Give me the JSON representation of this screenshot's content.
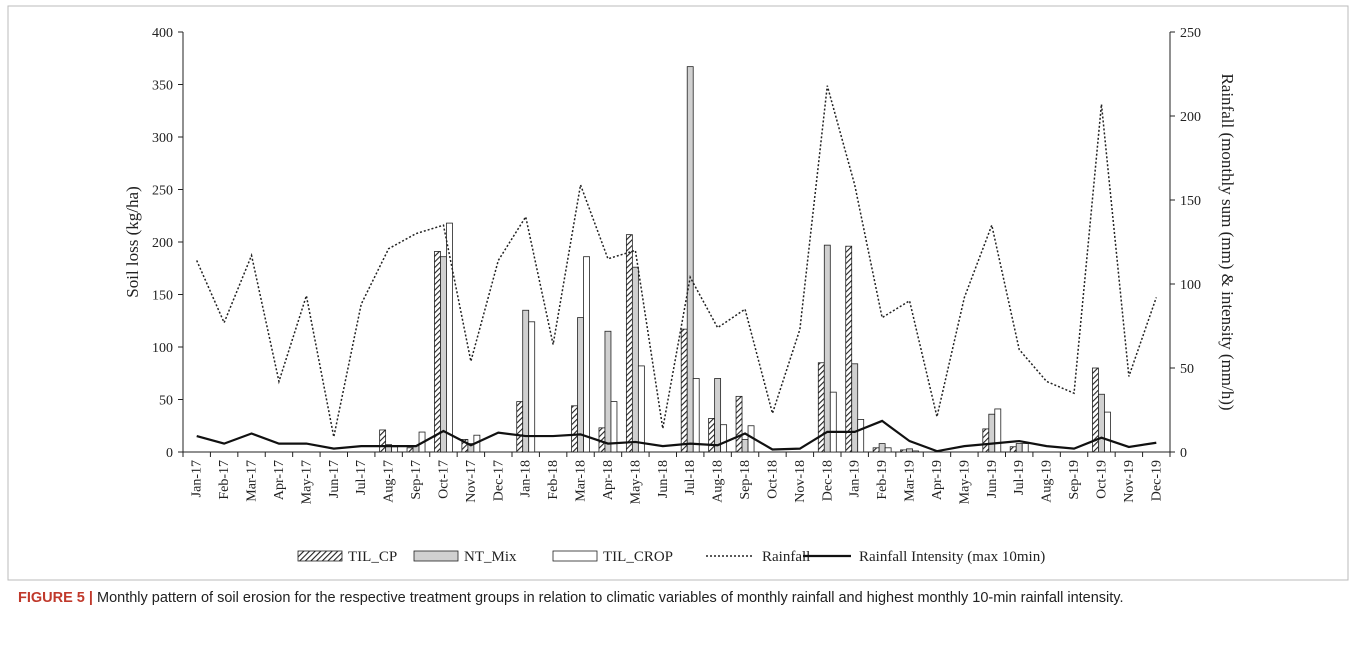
{
  "chart_data": {
    "type": "bar",
    "categories": [
      "Jan-17",
      "Feb-17",
      "Mar-17",
      "Apr-17",
      "May-17",
      "Jun-17",
      "Jul-17",
      "Aug-17",
      "Sep-17",
      "Oct-17",
      "Nov-17",
      "Dec-17",
      "Jan-18",
      "Feb-18",
      "Mar-18",
      "Apr-18",
      "May-18",
      "Jun-18",
      "Jul-18",
      "Aug-18",
      "Sep-18",
      "Oct-18",
      "Nov-18",
      "Dec-18",
      "Jan-19",
      "Feb-19",
      "Mar-19",
      "Apr-19",
      "May-19",
      "Jun-19",
      "Jul-19",
      "Aug-19",
      "Sep-19",
      "Oct-19",
      "Nov-19",
      "Dec-19"
    ],
    "ylabel": "Soil loss (kg/ha)",
    "y2label": "Rainfall  (monthly sum (mm) & intensity  (mm/h))",
    "ylim": [
      0,
      400
    ],
    "yticks": [
      0,
      50,
      100,
      150,
      200,
      250,
      300,
      350,
      400
    ],
    "y2lim": [
      0,
      250
    ],
    "y2ticks": [
      0,
      50,
      100,
      150,
      200,
      250
    ],
    "grid": false,
    "legend": "bottom",
    "series": [
      {
        "name": "TIL_CP",
        "type": "bar",
        "color": "#222222",
        "pattern": "hatch",
        "values": [
          0,
          0,
          0,
          0,
          0,
          0,
          0,
          21,
          4,
          191,
          12,
          0,
          48,
          0,
          44,
          23,
          207,
          0,
          117,
          32,
          53,
          0,
          0,
          85,
          196,
          4,
          2,
          0,
          0,
          22,
          5,
          0,
          0,
          80,
          0,
          0
        ]
      },
      {
        "name": "NT_Mix",
        "type": "bar",
        "color": "#d0d0d0",
        "values": [
          0,
          0,
          0,
          0,
          0,
          0,
          0,
          7,
          6,
          186,
          8,
          0,
          135,
          0,
          128,
          115,
          176,
          0,
          367,
          70,
          12,
          0,
          0,
          197,
          84,
          8,
          3,
          0,
          0,
          36,
          8,
          0,
          0,
          55,
          0,
          0
        ]
      },
      {
        "name": "TIL_CROP",
        "type": "bar",
        "color": "#ffffff",
        "values": [
          0,
          0,
          0,
          0,
          0,
          0,
          0,
          5,
          19,
          218,
          16,
          0,
          124,
          0,
          186,
          48,
          82,
          0,
          70,
          26,
          25,
          0,
          0,
          57,
          31,
          4,
          1,
          0,
          0,
          41,
          8,
          0,
          0,
          38,
          0,
          0
        ]
      },
      {
        "name": "Rainfall",
        "type": "line",
        "axis": "y2",
        "color": "#222222",
        "dash": "dotted",
        "values": [
          114,
          77,
          117,
          42,
          93,
          9,
          88,
          121,
          130,
          135,
          54,
          114,
          140,
          64,
          159,
          115,
          120,
          14,
          104,
          74,
          85,
          23,
          73,
          218,
          159,
          80,
          90,
          21,
          92,
          135,
          61,
          42,
          35,
          207,
          45,
          92
        ]
      },
      {
        "name": "Rainfall Intensity (max 10min)",
        "type": "line",
        "axis": "y2",
        "color": "#111111",
        "values": [
          9.5,
          5,
          11,
          5,
          5,
          2,
          3.5,
          3.5,
          3.5,
          12.5,
          4,
          11.5,
          9.5,
          9.5,
          10.5,
          5,
          6,
          3.5,
          5,
          4,
          11,
          1.5,
          2,
          12,
          12,
          18.5,
          6.5,
          0.5,
          3.5,
          5,
          6.5,
          3.5,
          2,
          8.5,
          3,
          5.5
        ]
      }
    ]
  },
  "caption": {
    "label": "FIGURE 5 |",
    "text": "Monthly pattern of soil erosion for the respective treatment groups in relation to climatic variables of monthly rainfall and highest monthly 10-min rainfall intensity."
  }
}
